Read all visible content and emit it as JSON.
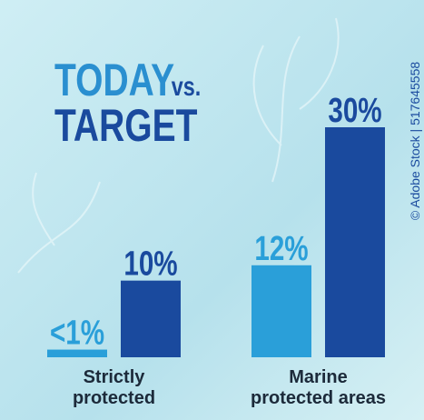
{
  "title_parts": [
    "TODAY",
    "vs.",
    "TARGET"
  ],
  "credit": "© Adobe Stock | 517645558",
  "chart_data": {
    "type": "bar",
    "categories": [
      [
        "Strictly",
        "protected"
      ],
      [
        "Marine",
        "protected areas"
      ]
    ],
    "series": [
      {
        "color": "#2a9fd9",
        "values": [
          1,
          12
        ],
        "value_labels": [
          "<1%",
          "12%"
        ]
      },
      {
        "color": "#1a4a9e",
        "values": [
          10,
          30
        ],
        "value_labels": [
          "10%",
          "30%"
        ]
      }
    ],
    "ylim": [
      0,
      30
    ]
  }
}
